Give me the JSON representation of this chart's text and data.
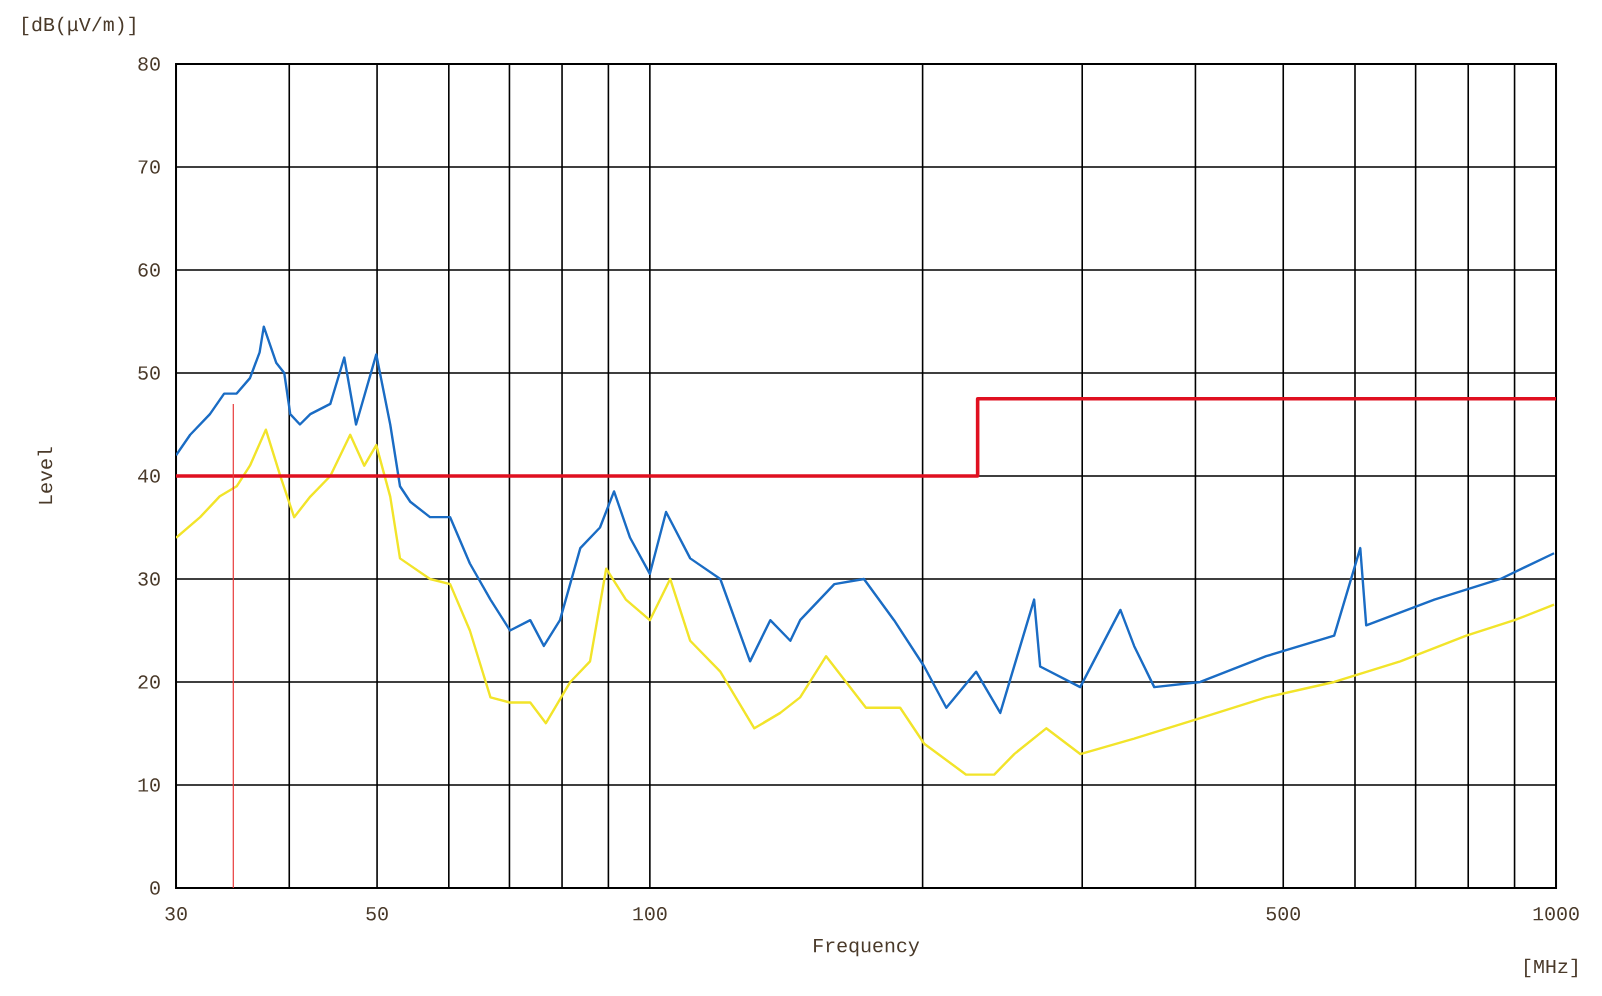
{
  "chart_data": {
    "type": "line",
    "xlabel": "Frequency",
    "ylabel": "Level",
    "annotations": [
      "[dB(μV/m)]",
      "[MHz]"
    ],
    "log": "x",
    "grid": true,
    "xlim": [
      30,
      1000
    ],
    "ylim": [
      0,
      80
    ],
    "xticks": [
      30,
      {
        "value": 40,
        "label": null
      },
      50,
      {
        "value": 60,
        "label": null
      },
      {
        "value": 70,
        "label": null
      },
      {
        "value": 80,
        "label": null
      },
      {
        "value": 90,
        "label": null
      },
      100,
      {
        "value": 200,
        "label": null
      },
      {
        "value": 300,
        "label": null
      },
      {
        "value": 400,
        "label": null
      },
      500,
      {
        "value": 600,
        "label": null
      },
      {
        "value": 700,
        "label": null
      },
      {
        "value": 800,
        "label": null
      },
      {
        "value": 900,
        "label": null
      },
      1000
    ],
    "yticks": [
      0,
      10,
      20,
      30,
      40,
      50,
      60,
      70,
      80
    ],
    "series": [
      {
        "color": "#1a6cc4",
        "x": [
          30,
          31.1,
          32.7,
          33.9,
          35.0,
          36.2,
          37.1,
          37.5,
          38.7,
          39.5,
          40.1,
          41.1,
          42.2,
          44.4,
          46.0,
          47.4,
          49.9,
          51.7,
          53.0,
          54.4,
          57.2,
          60.2,
          63.3,
          66.7,
          70.1,
          73.8,
          76.4,
          79.6,
          83.8,
          88.1,
          91.3,
          95.1,
          100,
          104.2,
          110.8,
          119.6,
          129.0,
          135.8,
          142.9,
          146.5,
          159.8,
          172.3,
          186.0,
          200.8,
          212.4,
          229.1,
          243.6,
          265.5,
          269.6,
          298.5,
          330.6,
          342.3,
          360.3,
          405,
          478.8,
          569.1,
          608.1,
          617.4,
          734.1,
          868.2,
          995
        ],
        "values": [
          42,
          44,
          46,
          48,
          48,
          49.5,
          52,
          54.5,
          51,
          50,
          46,
          45,
          46,
          47,
          51.5,
          45,
          51.8,
          45,
          39,
          37.5,
          36,
          36,
          31.5,
          28,
          25,
          26,
          23.5,
          26,
          33,
          35,
          38.5,
          34,
          30.5,
          36.5,
          32,
          30,
          22,
          26,
          24,
          26,
          29.5,
          30,
          26,
          21.5,
          17.5,
          21,
          17,
          28,
          21.5,
          19.5,
          27,
          23.5,
          19.5,
          20,
          22.5,
          24.5,
          33,
          25.5,
          28,
          30,
          32.5
        ]
      },
      {
        "color": "#f2e42a",
        "x": [
          30,
          31.9,
          33.5,
          35.0,
          36.2,
          37.7,
          39.1,
          40.5,
          42.2,
          44.4,
          46.7,
          48.4,
          49.9,
          51.7,
          53.0,
          57.2,
          60.2,
          63.3,
          66.7,
          70.1,
          73.8,
          76.8,
          81.7,
          85.9,
          89.5,
          94.1,
          100,
          105.3,
          110.8,
          119.6,
          130.4,
          139.3,
          146.5,
          156.5,
          173.2,
          188.9,
          200.8,
          223.4,
          239.9,
          252.4,
          273.8,
          298.5,
          342.3,
          405,
          478.8,
          569.1,
          673.2,
          796.2,
          899.7,
          995
        ],
        "values": [
          34,
          36,
          38,
          39,
          41,
          44.5,
          40,
          36,
          38,
          40,
          44,
          41,
          43,
          38,
          32,
          30,
          29.5,
          25,
          18.5,
          18,
          18,
          16,
          20,
          22,
          31,
          28,
          26,
          30,
          24,
          21,
          15.5,
          17,
          18.5,
          22.5,
          17.5,
          17.5,
          14,
          11,
          11,
          13,
          15.5,
          13,
          14.5,
          16.5,
          18.5,
          20,
          22,
          24.5,
          26,
          27.5
        ]
      },
      {
        "type": "step",
        "color": "#e01020",
        "x": [
          30,
          230,
          1000
        ],
        "values": [
          40,
          47.5,
          47.5
        ]
      },
      {
        "color": "#e83a3a",
        "x": [
          34.7,
          34.7
        ],
        "values": [
          0,
          47
        ]
      }
    ]
  }
}
